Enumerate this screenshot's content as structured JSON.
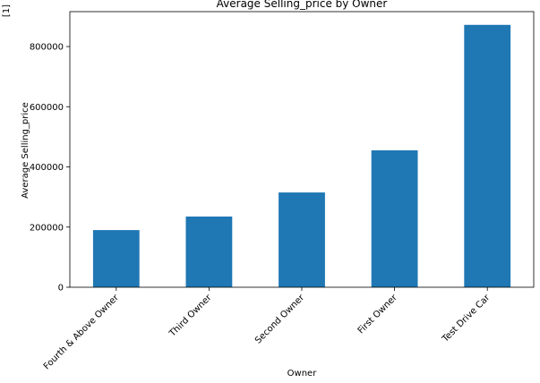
{
  "chart_data": {
    "type": "bar",
    "title": "Average Selling_price by Owner",
    "xlabel": "Owner",
    "ylabel": "Average Selling_price",
    "categories": [
      "Fourth & Above Owner",
      "Third Owner",
      "Second Owner",
      "First Owner",
      "Test Drive Car"
    ],
    "values": [
      190000,
      235000,
      315000,
      455000,
      872000
    ],
    "ylim": [
      0,
      916000
    ],
    "yticks": [
      0,
      200000,
      400000,
      600000,
      800000
    ],
    "ytick_labels": [
      "0",
      "200000",
      "400000",
      "600000",
      "800000"
    ],
    "bar_color": "#1f77b4",
    "grid": false,
    "legend": "none"
  },
  "fragment_text": "[1]"
}
